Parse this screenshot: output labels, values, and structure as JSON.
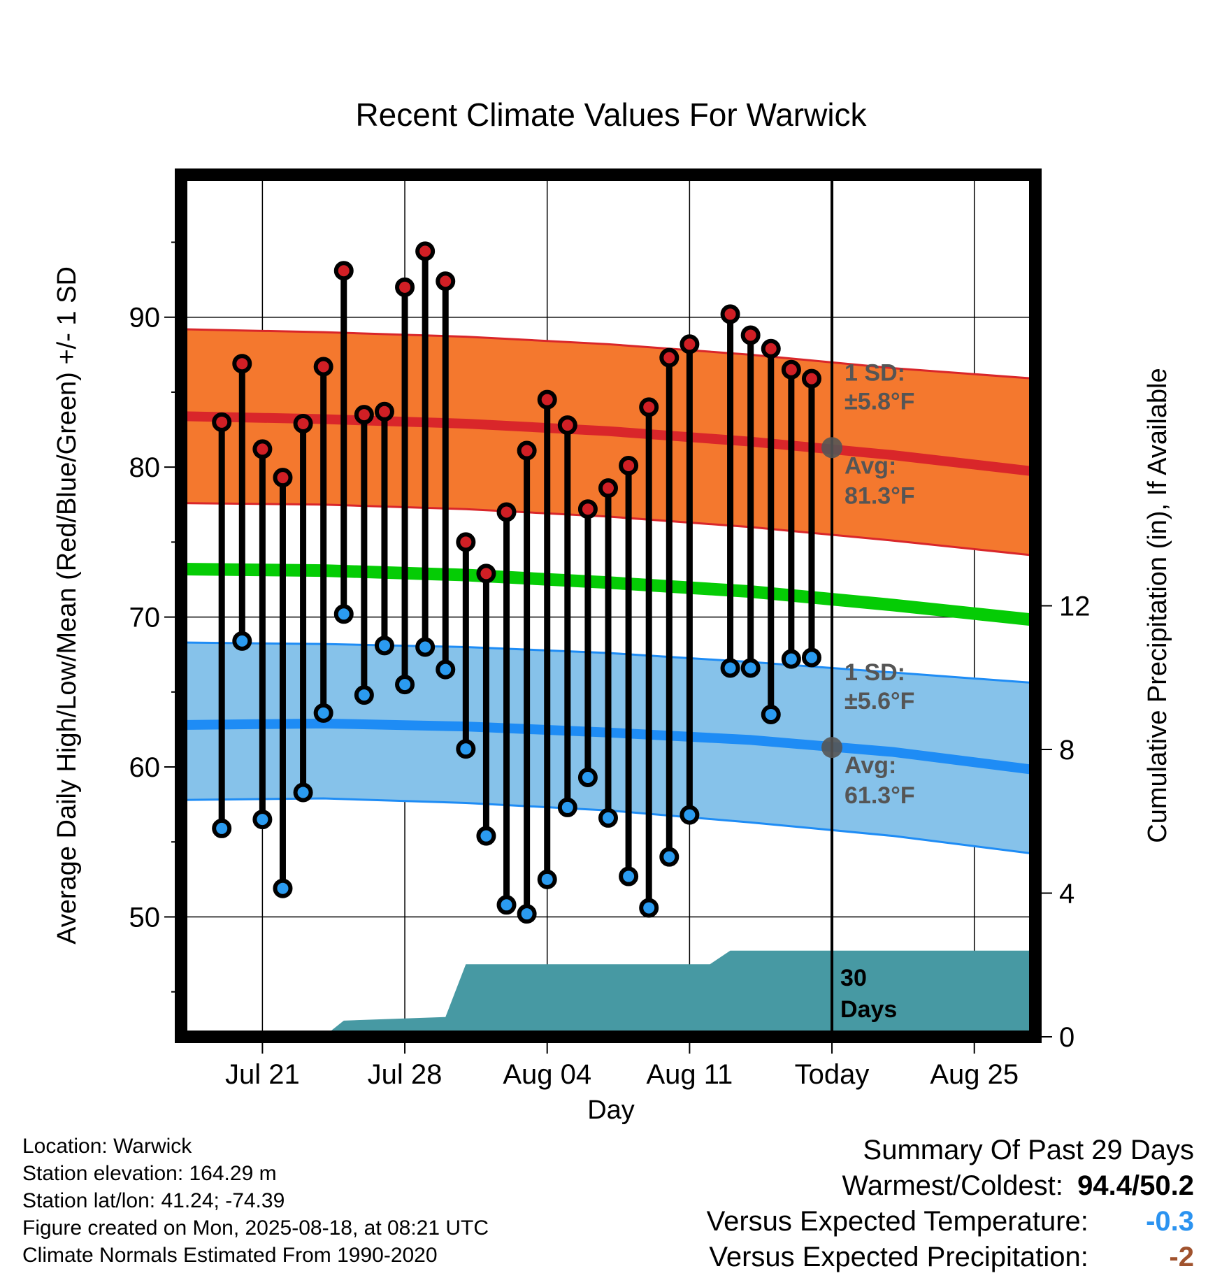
{
  "chart_data": {
    "type": "line",
    "title": "Recent Climate Values For Warwick",
    "xlabel": "Day",
    "ylabel": "Average Daily High/Low/Mean (Red/Blue/Green) +/- 1 SD",
    "y2label": "Cumulative Precipitation (in), If Available",
    "x_tick_labels": [
      "Jul 21",
      "Jul 28",
      "Aug 04",
      "Aug 11",
      "Today",
      "Aug 25"
    ],
    "y_ticks": [
      50,
      60,
      70,
      80,
      90
    ],
    "y2_ticks": [
      0,
      4,
      8,
      12
    ],
    "xlim": [
      "2025-07-17",
      "2025-08-28"
    ],
    "ylim": [
      42,
      99.5
    ],
    "y2lim": [
      0,
      24
    ],
    "today": "2025-08-18",
    "window_label": [
      "30",
      "Days"
    ],
    "dates": [
      "2025-07-19",
      "2025-07-20",
      "2025-07-21",
      "2025-07-22",
      "2025-07-23",
      "2025-07-24",
      "2025-07-25",
      "2025-07-26",
      "2025-07-27",
      "2025-07-28",
      "2025-07-29",
      "2025-07-30",
      "2025-07-31",
      "2025-08-01",
      "2025-08-02",
      "2025-08-03",
      "2025-08-04",
      "2025-08-05",
      "2025-08-06",
      "2025-08-07",
      "2025-08-08",
      "2025-08-09",
      "2025-08-10",
      "2025-08-11",
      "2025-08-13",
      "2025-08-14",
      "2025-08-15",
      "2025-08-16",
      "2025-08-17"
    ],
    "highs": [
      83.0,
      86.9,
      81.2,
      79.3,
      82.9,
      86.7,
      93.1,
      83.5,
      83.7,
      92.0,
      94.4,
      92.4,
      75.0,
      72.9,
      77.0,
      81.1,
      84.5,
      82.8,
      77.2,
      78.6,
      80.1,
      84.0,
      87.3,
      88.2,
      90.2,
      88.8,
      87.9,
      86.5,
      85.9
    ],
    "lows": [
      55.9,
      68.4,
      56.5,
      51.9,
      58.3,
      63.6,
      70.2,
      64.8,
      68.1,
      65.5,
      68.0,
      66.5,
      61.2,
      55.4,
      50.8,
      50.2,
      52.5,
      57.3,
      59.3,
      56.6,
      52.7,
      50.6,
      54.0,
      56.8,
      66.6,
      66.6,
      63.5,
      67.2,
      67.3
    ],
    "normals": {
      "dates": [
        "2025-07-17",
        "2025-07-24",
        "2025-07-31",
        "2025-08-07",
        "2025-08-14",
        "2025-08-21",
        "2025-08-28"
      ],
      "high_avg": [
        83.4,
        83.2,
        82.9,
        82.4,
        81.7,
        80.8,
        79.7
      ],
      "high_plus_sd": [
        89.2,
        89.0,
        88.7,
        88.2,
        87.5,
        86.6,
        85.9
      ],
      "high_minus_sd": [
        77.6,
        77.5,
        77.2,
        76.7,
        76.0,
        75.1,
        74.1
      ],
      "mean": [
        73.2,
        73.1,
        72.8,
        72.3,
        71.7,
        70.8,
        69.8
      ],
      "low_avg": [
        62.8,
        62.9,
        62.7,
        62.3,
        61.8,
        61.0,
        59.8
      ],
      "low_plus_sd": [
        68.3,
        68.2,
        68.0,
        67.6,
        67.0,
        66.3,
        65.6
      ],
      "low_minus_sd": [
        57.8,
        57.9,
        57.6,
        57.1,
        56.3,
        55.4,
        54.2
      ]
    },
    "precip": {
      "dates": [
        "2025-07-17",
        "2025-07-24",
        "2025-07-25",
        "2025-07-30",
        "2025-07-31",
        "2025-08-12",
        "2025-08-13",
        "2025-08-28"
      ],
      "cumulative": [
        0,
        0,
        0.45,
        0.55,
        2.02,
        2.02,
        2.4,
        2.4
      ]
    },
    "annotations": {
      "high": {
        "sd": "±5.8°F",
        "avg": "81.3°F",
        "avg_value": 81.3
      },
      "low": {
        "sd": "±5.6°F",
        "avg": "61.3°F",
        "avg_value": 61.3
      },
      "sd_label": "1 SD:",
      "avg_label": "Avg:"
    },
    "colors": {
      "high_band": "#f4782e",
      "high_line": "#d9262a",
      "mean_line": "#05cc05",
      "low_band": "#86c2ea",
      "low_line": "#1e8cf5",
      "precip": "#4799a3",
      "high_dot": "#d11f25",
      "low_dot": "#2b9bf0",
      "annotation": "#555555"
    }
  },
  "footer": {
    "location": "Location: Warwick",
    "elevation": "Station elevation: 164.29 m",
    "latlon": "Station lat/lon: 41.24; -74.39",
    "created": "Figure created on Mon, 2025-08-18, at 08:21 UTC",
    "normals": "Climate Normals Estimated From 1990-2020"
  },
  "summary": {
    "title": "Summary Of Past 29 Days",
    "warmest_label": "Warmest/Coldest:",
    "warmest_value": "94.4/50.2",
    "temp_label": "Versus Expected Temperature:",
    "temp_value": "-0.3",
    "temp_color": "#2b93f0",
    "precip_label": "Versus Expected Precipitation:",
    "precip_value": "-2",
    "precip_color": "#a0522d"
  }
}
